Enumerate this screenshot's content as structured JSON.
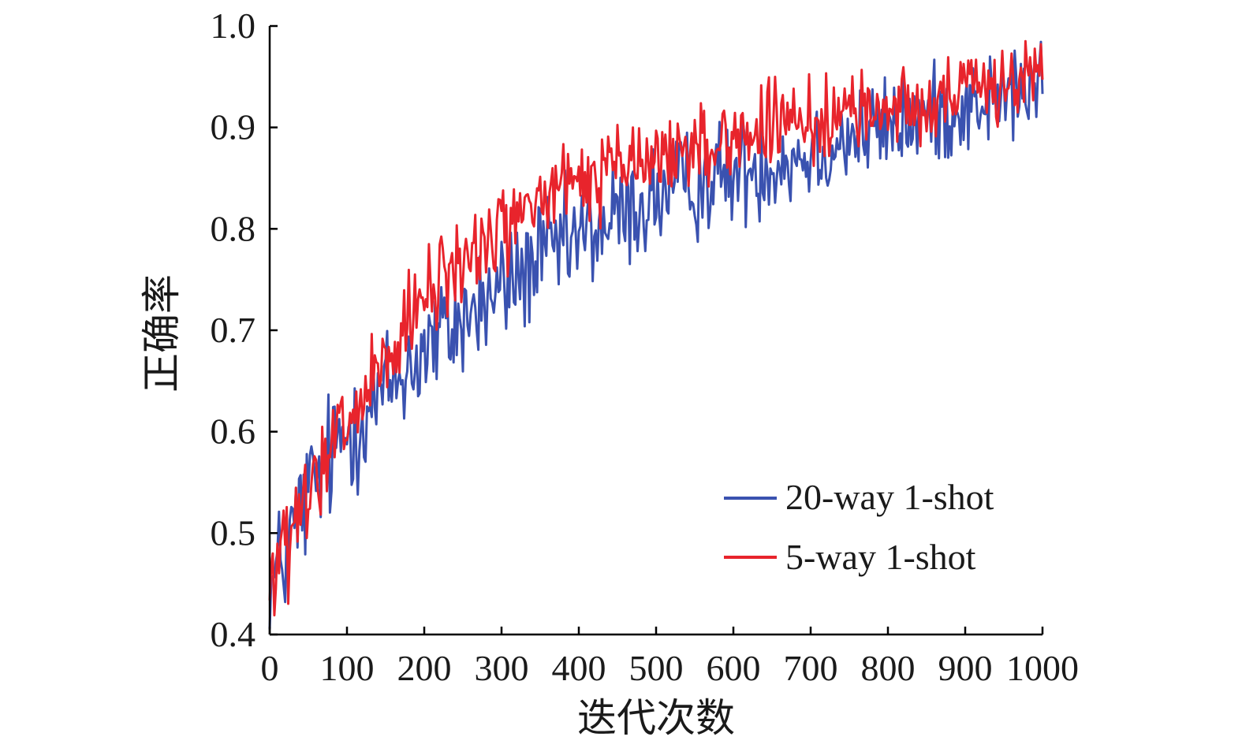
{
  "chart_data": {
    "type": "line",
    "title": "",
    "xlabel": "迭代次数",
    "ylabel": "正确率",
    "xlim": [
      0,
      1000
    ],
    "ylim": [
      0.4,
      1.0
    ],
    "x_ticks": [
      0,
      100,
      200,
      300,
      400,
      500,
      600,
      700,
      800,
      900,
      1000
    ],
    "x_tick_labels": [
      "0",
      "100",
      "200",
      "300",
      "400",
      "500",
      "600",
      "700",
      "800",
      "900",
      "1000"
    ],
    "y_ticks": [
      0.4,
      0.5,
      0.6,
      0.7,
      0.8,
      0.9,
      1.0
    ],
    "y_tick_labels": [
      "0.4",
      "0.5",
      "0.6",
      "0.7",
      "0.8",
      "0.9",
      "1.0"
    ],
    "grid": false,
    "legend_position": "lower-right",
    "series": [
      {
        "name": "20-way 1-shot",
        "color": "#3a52b0",
        "x": [
          0,
          50,
          100,
          150,
          200,
          250,
          300,
          350,
          400,
          450,
          500,
          550,
          600,
          650,
          700,
          750,
          800,
          850,
          900,
          950,
          1000
        ],
        "values": [
          0.44,
          0.54,
          0.6,
          0.64,
          0.68,
          0.71,
          0.74,
          0.77,
          0.79,
          0.81,
          0.83,
          0.845,
          0.855,
          0.865,
          0.875,
          0.89,
          0.9,
          0.91,
          0.92,
          0.93,
          0.94
        ]
      },
      {
        "name": "5-way 1-shot",
        "color": "#e8242c",
        "x": [
          0,
          50,
          100,
          150,
          200,
          250,
          300,
          350,
          400,
          450,
          500,
          550,
          600,
          650,
          700,
          750,
          800,
          850,
          900,
          950,
          1000
        ],
        "values": [
          0.45,
          0.53,
          0.61,
          0.66,
          0.73,
          0.77,
          0.8,
          0.83,
          0.845,
          0.86,
          0.87,
          0.88,
          0.89,
          0.9,
          0.905,
          0.915,
          0.92,
          0.925,
          0.935,
          0.945,
          0.955
        ]
      }
    ]
  }
}
